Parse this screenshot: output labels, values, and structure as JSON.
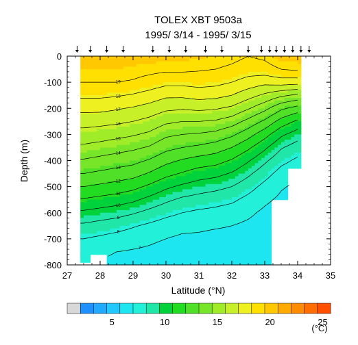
{
  "chart_data": {
    "type": "heatmap",
    "title": "TOLEX XBT 9503a",
    "subtitle": "1995/ 3/14 - 1995/ 3/15",
    "xlabel": "Latitude (°N)",
    "ylabel": "Depth (m)",
    "xlim": [
      27,
      35
    ],
    "ylim": [
      -800,
      0
    ],
    "x_ticks": [
      "27",
      "28",
      "29",
      "30",
      "31",
      "32",
      "33",
      "34",
      "35"
    ],
    "y_ticks": [
      "0",
      "-100",
      "-200",
      "-300",
      "-400",
      "-500",
      "-600",
      "-700",
      "-800"
    ],
    "station_latitudes": [
      27.3,
      27.7,
      28.2,
      28.7,
      29.6,
      30.1,
      30.6,
      31.2,
      31.7,
      32.5,
      32.9,
      33.15,
      33.35,
      33.6,
      33.85,
      34.1,
      34.35
    ],
    "contour_levels": [
      7,
      8,
      9,
      10,
      11,
      12,
      13,
      14,
      15,
      16,
      17,
      18,
      19
    ],
    "colorbar": {
      "ticks": [
        "5",
        "10",
        "15",
        "20",
        "25"
      ],
      "unit": "(°C)",
      "colors": [
        "#d8d8d8",
        "#1e90ff",
        "#22aaff",
        "#22c8ff",
        "#1ee6f0",
        "#22f0d8",
        "#20e6a8",
        "#00d23c",
        "#22dc22",
        "#50e028",
        "#78e628",
        "#a0ec28",
        "#c8f028",
        "#eef020",
        "#ffe000",
        "#ffc800",
        "#ffaa00",
        "#ff8c00",
        "#ff6e00",
        "#ff5000"
      ]
    },
    "sections": [
      {
        "lat": 27.5,
        "bottom": -785,
        "t": [
          19.8,
          19.5,
          19.0,
          18.2,
          17.3,
          16.4,
          15.6,
          14.8,
          13.9,
          13.0,
          12.0,
          10.9,
          9.8,
          8.8,
          8.0,
          7.3,
          6.9
        ]
      },
      {
        "lat": 28.0,
        "bottom": -760,
        "t": [
          19.8,
          19.5,
          19.0,
          18.2,
          17.3,
          16.3,
          15.5,
          14.6,
          13.7,
          12.8,
          11.8,
          10.7,
          9.6,
          8.6,
          7.8,
          7.2,
          6.9
        ]
      },
      {
        "lat": 28.5,
        "bottom": -800,
        "t": [
          19.8,
          19.5,
          19.0,
          18.1,
          17.1,
          16.2,
          15.3,
          14.4,
          13.5,
          12.6,
          11.6,
          10.5,
          9.4,
          8.4,
          7.6,
          7.0,
          6.7
        ]
      },
      {
        "lat": 29.0,
        "bottom": -800,
        "t": [
          19.8,
          19.4,
          18.9,
          17.9,
          16.9,
          16.0,
          15.1,
          14.2,
          13.3,
          12.4,
          11.3,
          10.2,
          9.1,
          8.1,
          7.4,
          6.9,
          6.6
        ]
      },
      {
        "lat": 29.5,
        "bottom": -800,
        "t": [
          19.8,
          19.3,
          18.6,
          17.6,
          16.6,
          15.7,
          14.8,
          13.9,
          12.9,
          11.9,
          10.8,
          9.7,
          8.7,
          7.8,
          7.2,
          6.8,
          6.5
        ]
      },
      {
        "lat": 30.0,
        "bottom": -800,
        "t": [
          19.7,
          19.2,
          18.3,
          17.2,
          16.2,
          15.2,
          14.2,
          13.3,
          12.3,
          11.3,
          10.2,
          9.2,
          8.3,
          7.5,
          7.0,
          6.6,
          6.4
        ]
      },
      {
        "lat": 30.5,
        "bottom": -800,
        "t": [
          19.7,
          19.2,
          18.3,
          17.2,
          16.1,
          15.0,
          14.0,
          13.0,
          11.9,
          10.9,
          9.8,
          8.8,
          8.0,
          7.3,
          6.8,
          6.5,
          6.3
        ]
      },
      {
        "lat": 31.0,
        "bottom": -800,
        "t": [
          19.6,
          19.1,
          18.4,
          17.4,
          16.2,
          15.0,
          13.9,
          12.8,
          11.6,
          10.5,
          9.5,
          8.6,
          7.8,
          7.2,
          6.8,
          6.5,
          6.3
        ]
      },
      {
        "lat": 31.5,
        "bottom": -800,
        "t": [
          19.5,
          19.0,
          18.3,
          17.3,
          16.1,
          14.9,
          13.7,
          12.5,
          11.4,
          10.3,
          9.3,
          8.4,
          7.7,
          7.1,
          6.7,
          6.4,
          6.3
        ]
      },
      {
        "lat": 32.0,
        "bottom": -800,
        "t": [
          19.3,
          18.8,
          18.0,
          17.0,
          15.8,
          14.5,
          13.2,
          12.0,
          10.9,
          9.9,
          9.0,
          8.2,
          7.5,
          7.0,
          6.7,
          6.4,
          6.3
        ]
      },
      {
        "lat": 32.5,
        "bottom": -800,
        "t": [
          19.0,
          18.5,
          17.6,
          16.4,
          15.1,
          13.7,
          12.4,
          11.2,
          10.1,
          9.2,
          8.4,
          7.7,
          7.2,
          6.8,
          6.5,
          6.3,
          6.2
        ]
      },
      {
        "lat": 33.0,
        "bottom": -800,
        "t": [
          19.2,
          18.6,
          17.3,
          15.8,
          14.3,
          12.8,
          11.4,
          10.2,
          9.2,
          8.4,
          7.7,
          7.2,
          6.8,
          6.5,
          6.3,
          6.2,
          6.1
        ]
      },
      {
        "lat": 33.5,
        "bottom": -550,
        "t": [
          19.8,
          19.0,
          17.5,
          15.2,
          13.2,
          11.6,
          10.2,
          9.1,
          8.3,
          7.6,
          7.1,
          6.8,
          6.5,
          6.3,
          6.2,
          6.1,
          6.0
        ]
      },
      {
        "lat": 34.0,
        "bottom": -430,
        "t": [
          19.8,
          19.2,
          17.4,
          14.8,
          12.6,
          10.8,
          9.5,
          8.5,
          7.8,
          7.2,
          6.8,
          6.5,
          6.3,
          6.2,
          6.1,
          6.0,
          6.0
        ]
      }
    ]
  }
}
